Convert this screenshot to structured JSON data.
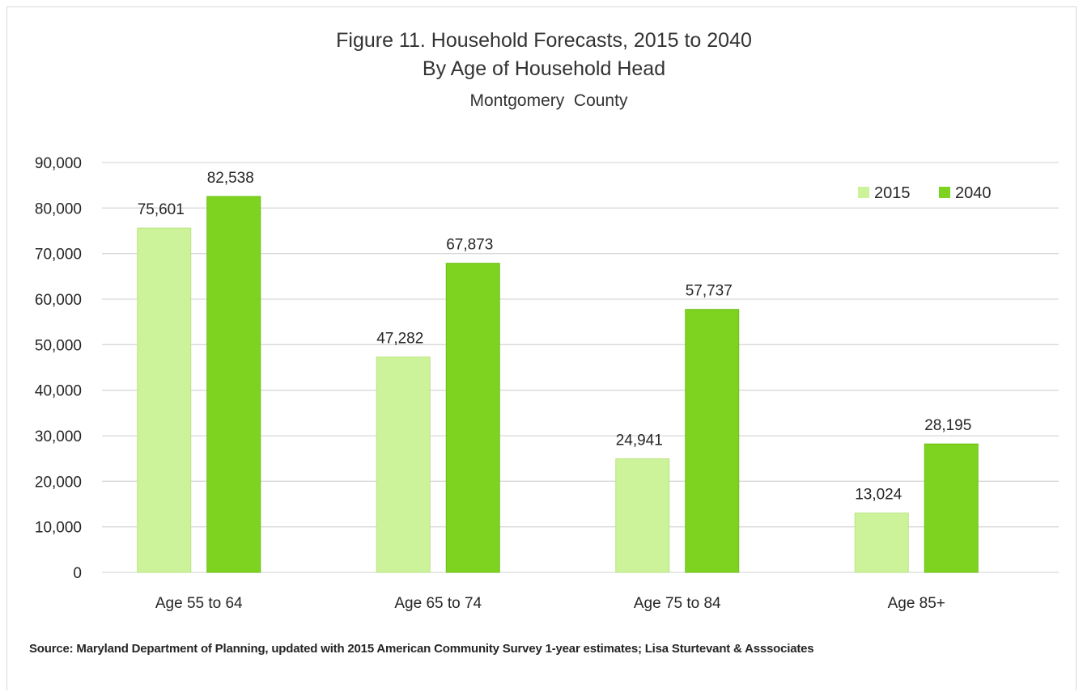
{
  "chart_data": {
    "type": "bar",
    "title": "Figure 11. Household Forecasts, 2015 to 2040",
    "subtitle": "By Age of Household Head",
    "subtitle2": "Montgomery  County",
    "categories": [
      "Age 55 to 64",
      "Age 65 to 74",
      "Age 75 to 84",
      "Age 85+"
    ],
    "series": [
      {
        "name": "2015",
        "values": [
          75601,
          47282,
          24941,
          13024
        ],
        "labels": [
          "75,601",
          "47,282",
          "24,941",
          "13,024"
        ],
        "color": "#ccf29a"
      },
      {
        "name": "2040",
        "values": [
          82538,
          67873,
          57737,
          28195
        ],
        "labels": [
          "82,538",
          "67,873",
          "57,737",
          "28,195"
        ],
        "color": "#7ed321"
      }
    ],
    "ylim": [
      0,
      90000
    ],
    "yticks": [
      0,
      10000,
      20000,
      30000,
      40000,
      50000,
      60000,
      70000,
      80000,
      90000
    ],
    "ytick_labels": [
      "0",
      "10,000",
      "20,000",
      "30,000",
      "40,000",
      "50,000",
      "60,000",
      "70,000",
      "80,000",
      "90,000"
    ],
    "xlabel": "",
    "ylabel": "",
    "grid": true,
    "legend_position": "top-right",
    "gridline_color": "#d9d9d9"
  },
  "source_note": "Source: Maryland Department of Planning, updated with 2015  American Community Survey 1-year estimates; Lisa Sturtevant & Asssociates"
}
